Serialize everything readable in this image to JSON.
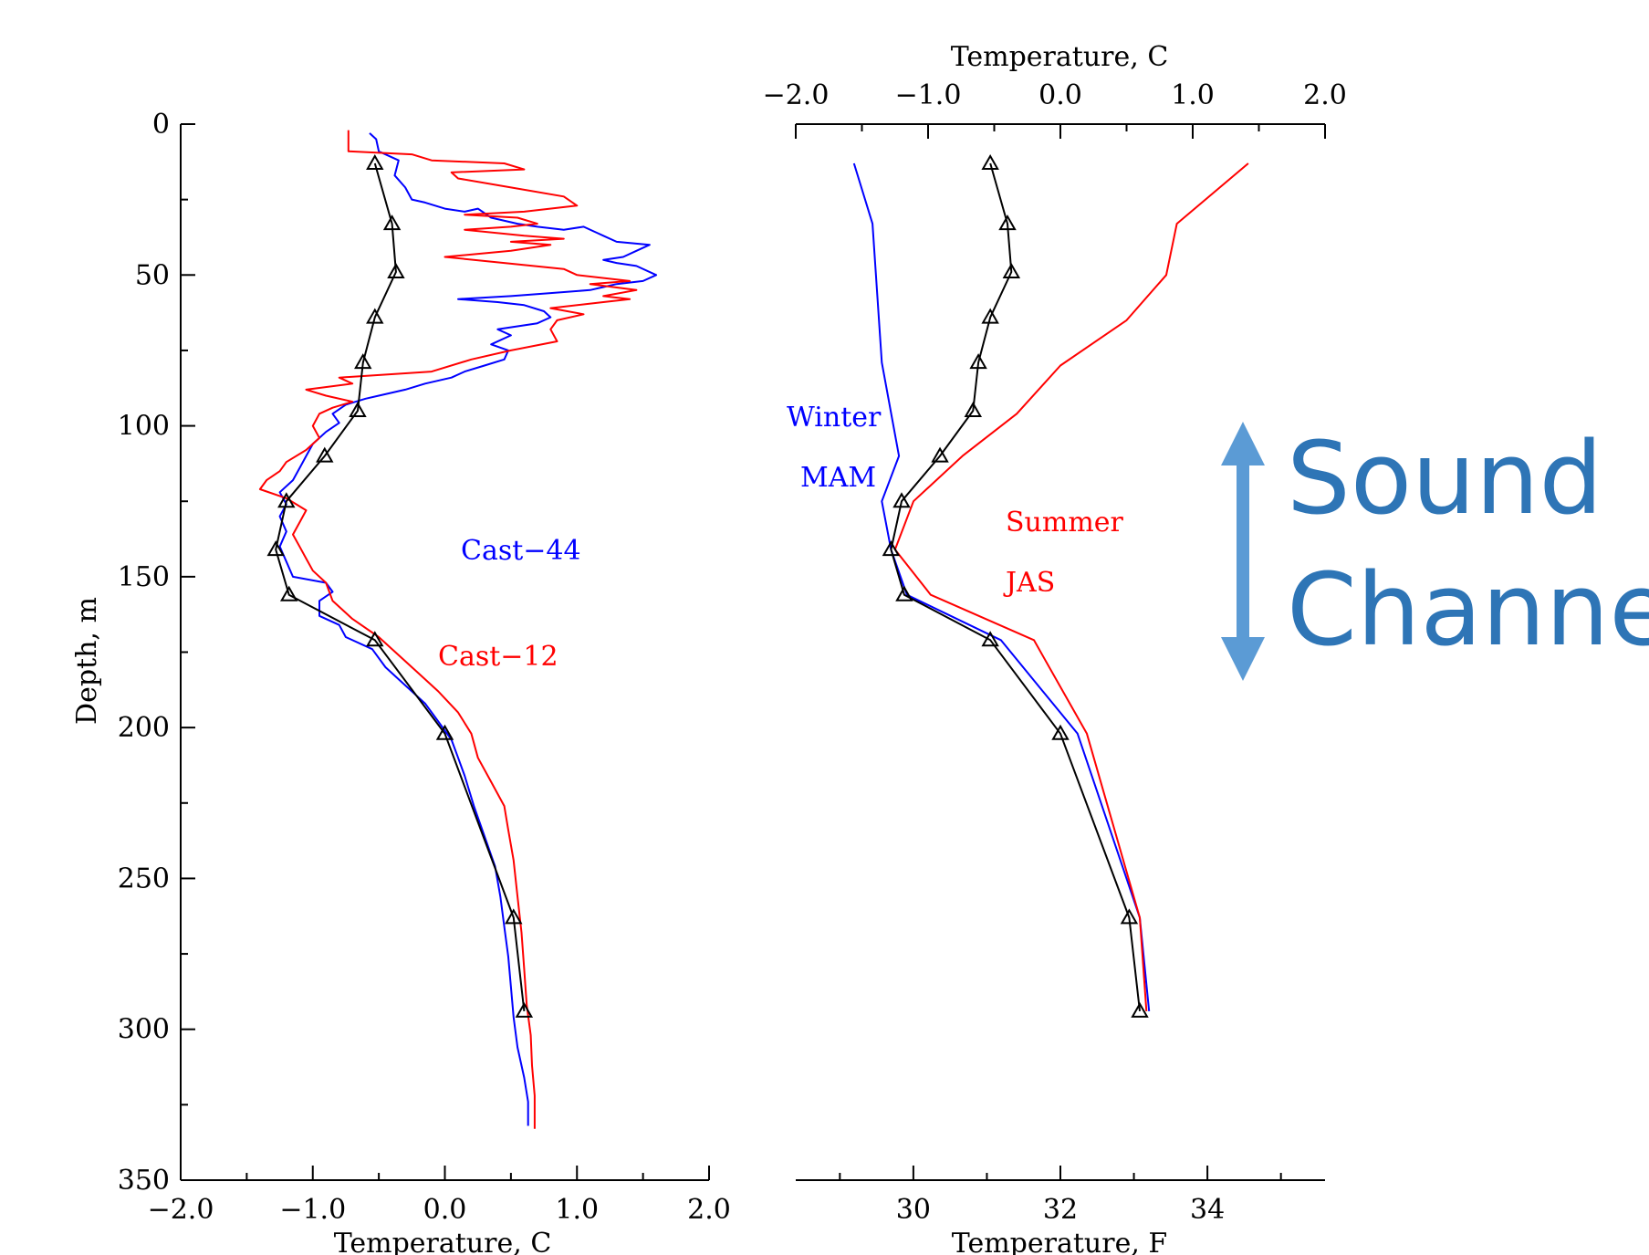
{
  "colors": {
    "red": "#ff0000",
    "blue": "#0000ff",
    "black": "#000000",
    "sound_arrow": "#5b9bd5",
    "sound_text": "#2e75b6"
  },
  "chart_data": [
    {
      "type": "line",
      "xlabel": "Temperature, C",
      "ylabel": "Depth, m",
      "xlim": [
        -2.0,
        2.0
      ],
      "ylim": [
        350,
        0
      ],
      "y_inverted": true,
      "x_ticks": [
        "−2.0",
        "−1.0",
        "0.0",
        "1.0",
        "2.0"
      ],
      "y_ticks": [
        "0",
        "50",
        "100",
        "150",
        "200",
        "250",
        "300",
        "350"
      ],
      "series": [
        {
          "name": "Cast−44",
          "color": "#0000ff",
          "marker": "none",
          "points": [
            [
              -0.57,
              3
            ],
            [
              -0.52,
              5
            ],
            [
              -0.5,
              9
            ],
            [
              -0.35,
              12
            ],
            [
              -0.38,
              17
            ],
            [
              -0.3,
              21
            ],
            [
              -0.25,
              25
            ],
            [
              -0.15,
              26
            ],
            [
              0.0,
              28
            ],
            [
              0.15,
              29
            ],
            [
              0.25,
              28
            ],
            [
              0.35,
              31
            ],
            [
              0.55,
              33
            ],
            [
              0.7,
              34
            ],
            [
              0.9,
              35
            ],
            [
              1.05,
              34
            ],
            [
              1.15,
              36
            ],
            [
              1.2,
              37
            ],
            [
              1.3,
              39
            ],
            [
              1.55,
              40
            ],
            [
              1.45,
              42
            ],
            [
              1.35,
              44
            ],
            [
              1.2,
              45
            ],
            [
              1.3,
              46
            ],
            [
              1.45,
              47
            ],
            [
              1.6,
              50
            ],
            [
              1.5,
              52
            ],
            [
              1.3,
              53
            ],
            [
              1.2,
              54
            ],
            [
              1.1,
              55
            ],
            [
              0.8,
              56
            ],
            [
              0.5,
              57
            ],
            [
              0.1,
              58
            ],
            [
              0.4,
              59
            ],
            [
              0.6,
              60
            ],
            [
              0.75,
              62
            ],
            [
              0.8,
              64
            ],
            [
              0.7,
              66
            ],
            [
              0.4,
              68
            ],
            [
              0.5,
              70
            ],
            [
              0.35,
              73
            ],
            [
              0.48,
              75
            ],
            [
              0.45,
              78
            ],
            [
              0.3,
              80
            ],
            [
              0.15,
              82
            ],
            [
              0.05,
              84
            ],
            [
              -0.15,
              86
            ],
            [
              -0.3,
              88
            ],
            [
              -0.5,
              90
            ],
            [
              -0.6,
              91
            ],
            [
              -0.75,
              93
            ],
            [
              -0.85,
              96
            ],
            [
              -0.8,
              99
            ],
            [
              -0.9,
              102
            ],
            [
              -1.0,
              106
            ],
            [
              -1.05,
              110
            ],
            [
              -1.1,
              114
            ],
            [
              -1.15,
              118
            ],
            [
              -1.25,
              122
            ],
            [
              -1.2,
              126
            ],
            [
              -1.25,
              130
            ],
            [
              -1.2,
              135
            ],
            [
              -1.25,
              140
            ],
            [
              -1.2,
              145
            ],
            [
              -1.15,
              150
            ],
            [
              -0.9,
              152
            ],
            [
              -0.85,
              155
            ],
            [
              -0.95,
              158
            ],
            [
              -0.95,
              163
            ],
            [
              -0.8,
              166
            ],
            [
              -0.75,
              170
            ],
            [
              -0.55,
              174
            ],
            [
              -0.45,
              180
            ],
            [
              -0.3,
              186
            ],
            [
              -0.15,
              192
            ],
            [
              -0.05,
              198
            ],
            [
              0.05,
              204
            ],
            [
              0.1,
              210
            ],
            [
              0.15,
              216
            ],
            [
              0.22,
              226
            ],
            [
              0.3,
              236
            ],
            [
              0.38,
              246
            ],
            [
              0.42,
              256
            ],
            [
              0.45,
              266
            ],
            [
              0.48,
              276
            ],
            [
              0.5,
              286
            ],
            [
              0.52,
              296
            ],
            [
              0.55,
              306
            ],
            [
              0.6,
              316
            ],
            [
              0.63,
              324
            ],
            [
              0.63,
              332
            ]
          ]
        },
        {
          "name": "Cast−12",
          "color": "#ff0000",
          "marker": "none",
          "points": [
            [
              -0.73,
              2
            ],
            [
              -0.73,
              9
            ],
            [
              -0.25,
              10
            ],
            [
              -0.1,
              12
            ],
            [
              0.45,
              13
            ],
            [
              0.6,
              15
            ],
            [
              0.05,
              16
            ],
            [
              0.1,
              18
            ],
            [
              0.5,
              21
            ],
            [
              0.9,
              24
            ],
            [
              1.0,
              27
            ],
            [
              0.6,
              29
            ],
            [
              0.15,
              30
            ],
            [
              0.55,
              31
            ],
            [
              0.7,
              33
            ],
            [
              0.5,
              34
            ],
            [
              0.15,
              35
            ],
            [
              0.6,
              37
            ],
            [
              0.9,
              38
            ],
            [
              0.5,
              39
            ],
            [
              0.8,
              40
            ],
            [
              0.5,
              42
            ],
            [
              0.0,
              44
            ],
            [
              0.45,
              46
            ],
            [
              0.9,
              48
            ],
            [
              1.0,
              50
            ],
            [
              1.4,
              52
            ],
            [
              1.1,
              53
            ],
            [
              1.45,
              55
            ],
            [
              1.2,
              57
            ],
            [
              1.4,
              58
            ],
            [
              1.2,
              59
            ],
            [
              0.8,
              61
            ],
            [
              1.05,
              63
            ],
            [
              0.85,
              65
            ],
            [
              0.8,
              68
            ],
            [
              0.85,
              72
            ],
            [
              0.5,
              75
            ],
            [
              0.2,
              78
            ],
            [
              -0.1,
              82
            ],
            [
              -0.8,
              84
            ],
            [
              -0.7,
              86
            ],
            [
              -1.05,
              88
            ],
            [
              -0.9,
              90
            ],
            [
              -0.7,
              92
            ],
            [
              -0.85,
              94
            ],
            [
              -0.95,
              96
            ],
            [
              -1.0,
              100
            ],
            [
              -0.95,
              104
            ],
            [
              -1.05,
              108
            ],
            [
              -1.2,
              112
            ],
            [
              -1.25,
              115
            ],
            [
              -1.35,
              118
            ],
            [
              -1.4,
              121
            ],
            [
              -1.2,
              124
            ],
            [
              -1.05,
              128
            ],
            [
              -1.1,
              132
            ],
            [
              -1.15,
              136
            ],
            [
              -1.1,
              140
            ],
            [
              -1.05,
              144
            ],
            [
              -1.0,
              148
            ],
            [
              -0.9,
              152
            ],
            [
              -0.85,
              158
            ],
            [
              -0.7,
              164
            ],
            [
              -0.5,
              170
            ],
            [
              -0.35,
              176
            ],
            [
              -0.2,
              182
            ],
            [
              -0.05,
              188
            ],
            [
              0.1,
              195
            ],
            [
              0.2,
              202
            ],
            [
              0.25,
              210
            ],
            [
              0.35,
              218
            ],
            [
              0.45,
              226
            ],
            [
              0.48,
              234
            ],
            [
              0.52,
              244
            ],
            [
              0.55,
              256
            ],
            [
              0.58,
              268
            ],
            [
              0.6,
              280
            ],
            [
              0.62,
              292
            ],
            [
              0.65,
              302
            ],
            [
              0.66,
              312
            ],
            [
              0.68,
              322
            ],
            [
              0.68,
              333
            ]
          ]
        },
        {
          "name": "",
          "color": "#000000",
          "marker": "triangle",
          "points": [
            [
              -0.53,
              13
            ],
            [
              -0.4,
              33
            ],
            [
              -0.37,
              49
            ],
            [
              -0.53,
              64
            ],
            [
              -0.62,
              79
            ],
            [
              -0.66,
              95
            ],
            [
              -0.91,
              110
            ],
            [
              -1.2,
              125
            ],
            [
              -1.28,
              141
            ],
            [
              -1.18,
              156
            ],
            [
              -0.53,
              171
            ],
            [
              0.0,
              202
            ],
            [
              0.52,
              263
            ],
            [
              0.6,
              294
            ]
          ]
        }
      ]
    },
    {
      "type": "line",
      "xlabel": "Temperature, F",
      "xlabel_top": "Temperature, C",
      "xlim": [
        -2.0,
        2.0
      ],
      "ylim": [
        350,
        0
      ],
      "y_inverted": true,
      "x_ticks_top": [
        "−2.0",
        "−1.0",
        "0.0",
        "1.0",
        "2.0"
      ],
      "x_ticks_bottom": [
        "30",
        "32",
        "34"
      ],
      "series": [
        {
          "name": "Winter",
          "sublabel": "MAM",
          "color": "#0000ff",
          "marker": "none",
          "points": [
            [
              -1.56,
              13
            ],
            [
              -1.42,
              33
            ],
            [
              -1.35,
              79
            ],
            [
              -1.22,
              110
            ],
            [
              -1.35,
              125
            ],
            [
              -1.28,
              141
            ],
            [
              -1.16,
              156
            ],
            [
              -0.45,
              171
            ],
            [
              0.13,
              202
            ],
            [
              0.6,
              263
            ],
            [
              0.67,
              294
            ]
          ]
        },
        {
          "name": "Summer",
          "sublabel": "JAS",
          "color": "#ff0000",
          "marker": "none",
          "points": [
            [
              1.42,
              13
            ],
            [
              0.88,
              33
            ],
            [
              0.8,
              50
            ],
            [
              0.5,
              65
            ],
            [
              0.0,
              80
            ],
            [
              -0.33,
              96
            ],
            [
              -0.74,
              110
            ],
            [
              -1.11,
              125
            ],
            [
              -1.25,
              141
            ],
            [
              -0.98,
              156
            ],
            [
              -0.2,
              171
            ],
            [
              0.2,
              202
            ],
            [
              0.6,
              263
            ],
            [
              0.65,
              294
            ]
          ]
        },
        {
          "name": "",
          "color": "#000000",
          "marker": "triangle",
          "points": [
            [
              -0.53,
              13
            ],
            [
              -0.4,
              33
            ],
            [
              -0.37,
              49
            ],
            [
              -0.53,
              64
            ],
            [
              -0.62,
              79
            ],
            [
              -0.66,
              95
            ],
            [
              -0.91,
              110
            ],
            [
              -1.2,
              125
            ],
            [
              -1.28,
              141
            ],
            [
              -1.18,
              156
            ],
            [
              -0.53,
              171
            ],
            [
              0.0,
              202
            ],
            [
              0.52,
              263
            ],
            [
              0.6,
              294
            ]
          ]
        }
      ],
      "annotation": {
        "text_line1": "Sound",
        "text_line2": "Channel",
        "arrow": "double-vertical"
      }
    }
  ]
}
